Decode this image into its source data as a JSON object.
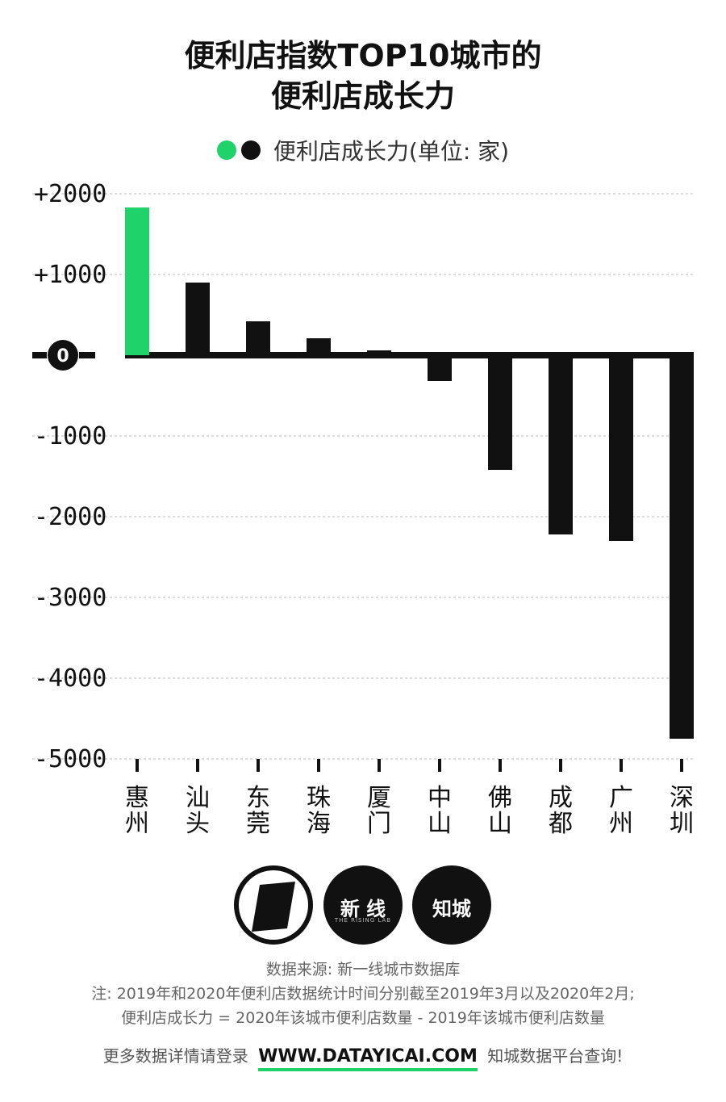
{
  "header": {
    "title_line1": "便利店指数TOP10城市的",
    "title_line2": "便利店成长力"
  },
  "legend": {
    "label": "便利店成长力(单位: 家)",
    "colors": [
      "#1fd26a",
      "#111111"
    ]
  },
  "chart_data": {
    "type": "bar",
    "categories": [
      "惠州",
      "汕头",
      "东莞",
      "珠海",
      "厦门",
      "中山",
      "佛山",
      "成都",
      "广州",
      "深圳"
    ],
    "values": [
      1830,
      900,
      420,
      210,
      60,
      -320,
      -1420,
      -2220,
      -2300,
      -4750
    ],
    "highlight_index": 0,
    "highlight_color": "#1fd26a",
    "bar_color": "#111111",
    "ylim": [
      -5000,
      2000
    ],
    "yticks": [
      2000,
      1000,
      0,
      -1000,
      -2000,
      -3000,
      -4000,
      -5000
    ],
    "ytick_labels": [
      "+2000",
      "+1000",
      "0",
      "-1000",
      "-2000",
      "-3000",
      "-4000",
      "-5000"
    ],
    "grid": true
  },
  "logos": {
    "logo2_text": "新 线",
    "logo2_sub": "THE RISING LAB",
    "logo3_text": "知城"
  },
  "footer": {
    "source": "数据来源: 新一线城市数据库",
    "note1": "注: 2019年和2020年便利店数据统计时间分别截至2019年3月以及2020年2月;",
    "note2": "便利店成长力 = 2020年该城市便利店数量 - 2019年该城市便利店数量",
    "cta_prefix": "更多数据详情请登录",
    "cta_url": "WWW.DATAYICAI.COM",
    "cta_suffix": "知城数据平台查询!"
  }
}
